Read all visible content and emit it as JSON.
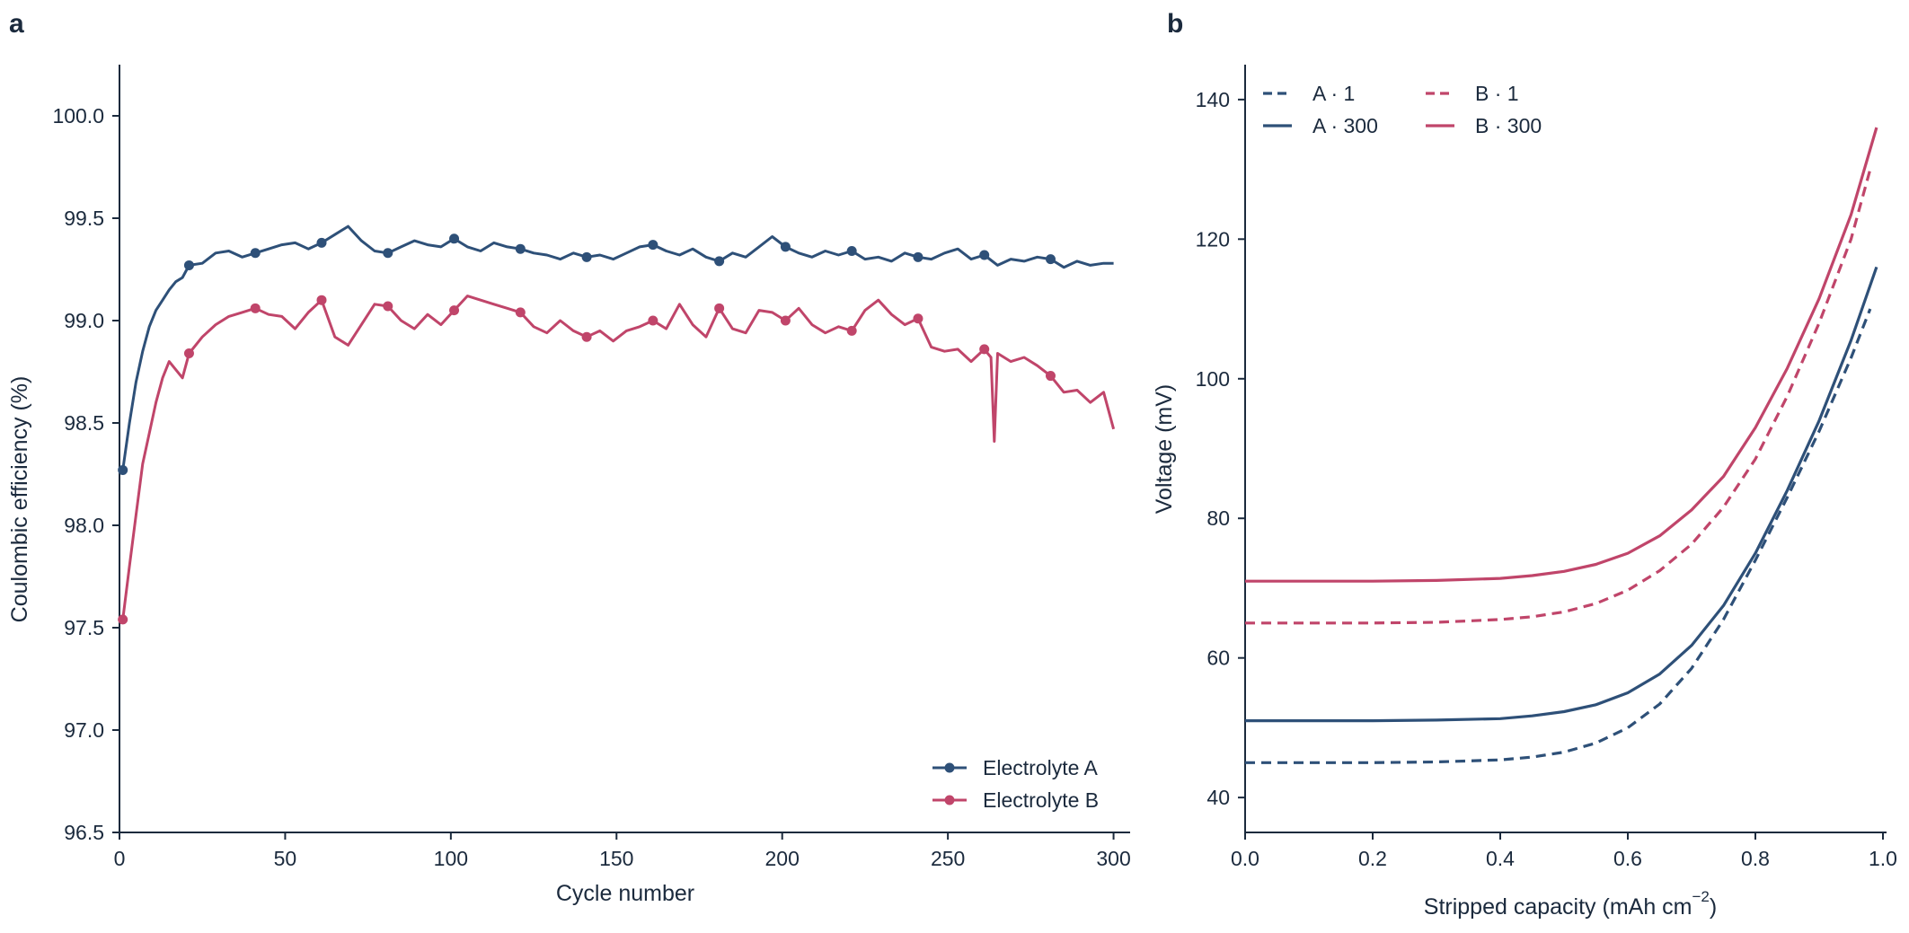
{
  "chart_data": [
    {
      "panel_label": "a",
      "type": "line",
      "xlabel": "Cycle number",
      "ylabel": "Coulombic efficiency (%)",
      "xlim": [
        0,
        305
      ],
      "ylim": [
        96.5,
        100.25
      ],
      "x_ticks": [
        0,
        50,
        100,
        150,
        200,
        250,
        300
      ],
      "x_tick_labels": [
        "0",
        "50",
        "100",
        "150",
        "200",
        "250",
        "300"
      ],
      "y_ticks": [
        96.5,
        97.0,
        97.5,
        98.0,
        98.5,
        99.0,
        99.5,
        100.0
      ],
      "y_tick_labels": [
        "96.5",
        "97.0",
        "97.5",
        "98.0",
        "98.5",
        "99.0",
        "99.5",
        "100.0"
      ],
      "legend_position": "bottom-right",
      "marker_cycles": [
        1,
        21,
        41,
        61,
        81,
        101,
        121,
        141,
        161,
        181,
        201,
        221,
        241,
        261,
        281
      ],
      "series": [
        {
          "name": "Electrolyte A",
          "color": "#2e5078",
          "x": [
            1,
            3,
            5,
            7,
            9,
            11,
            13,
            15,
            17,
            19,
            21,
            25,
            29,
            33,
            37,
            41,
            45,
            49,
            53,
            57,
            61,
            65,
            69,
            73,
            77,
            81,
            85,
            89,
            93,
            97,
            101,
            105,
            109,
            113,
            117,
            121,
            125,
            129,
            133,
            137,
            141,
            145,
            149,
            153,
            157,
            161,
            165,
            169,
            173,
            177,
            181,
            185,
            189,
            193,
            197,
            201,
            205,
            209,
            213,
            217,
            221,
            225,
            229,
            233,
            237,
            241,
            245,
            249,
            253,
            257,
            261,
            265,
            269,
            273,
            277,
            281,
            285,
            289,
            293,
            297,
            300
          ],
          "values": [
            98.27,
            98.5,
            98.7,
            98.85,
            98.97,
            99.05,
            99.1,
            99.15,
            99.19,
            99.21,
            99.27,
            99.28,
            99.33,
            99.34,
            99.31,
            99.33,
            99.35,
            99.37,
            99.38,
            99.35,
            99.38,
            99.42,
            99.46,
            99.39,
            99.34,
            99.33,
            99.36,
            99.39,
            99.37,
            99.36,
            99.4,
            99.36,
            99.34,
            99.38,
            99.36,
            99.35,
            99.33,
            99.32,
            99.3,
            99.33,
            99.31,
            99.32,
            99.3,
            99.33,
            99.36,
            99.37,
            99.34,
            99.32,
            99.35,
            99.31,
            99.29,
            99.33,
            99.31,
            99.36,
            99.41,
            99.36,
            99.33,
            99.31,
            99.34,
            99.32,
            99.34,
            99.3,
            99.31,
            99.29,
            99.33,
            99.31,
            99.3,
            99.33,
            99.35,
            99.3,
            99.32,
            99.27,
            99.3,
            99.29,
            99.31,
            99.3,
            99.26,
            99.29,
            99.27,
            99.28,
            99.28
          ]
        },
        {
          "name": "Electrolyte B",
          "color": "#c0456a",
          "x": [
            1,
            3,
            5,
            7,
            9,
            11,
            13,
            15,
            17,
            19,
            21,
            25,
            29,
            33,
            37,
            41,
            45,
            49,
            53,
            57,
            61,
            65,
            69,
            73,
            77,
            81,
            85,
            89,
            93,
            97,
            101,
            105,
            109,
            113,
            117,
            121,
            125,
            129,
            133,
            137,
            141,
            145,
            149,
            153,
            157,
            161,
            165,
            169,
            173,
            177,
            181,
            185,
            189,
            193,
            197,
            201,
            205,
            209,
            213,
            217,
            221,
            225,
            229,
            233,
            237,
            241,
            245,
            249,
            253,
            257,
            261,
            263,
            264,
            265,
            269,
            273,
            277,
            281,
            285,
            289,
            293,
            297,
            300
          ],
          "values": [
            97.54,
            97.8,
            98.05,
            98.3,
            98.45,
            98.6,
            98.72,
            98.8,
            98.76,
            98.72,
            98.84,
            98.92,
            98.98,
            99.02,
            99.04,
            99.06,
            99.03,
            99.02,
            98.96,
            99.04,
            99.1,
            98.92,
            98.88,
            98.98,
            99.08,
            99.07,
            99.0,
            98.96,
            99.03,
            98.98,
            99.05,
            99.12,
            99.1,
            99.08,
            99.06,
            99.04,
            98.97,
            98.94,
            99.0,
            98.95,
            98.92,
            98.95,
            98.9,
            98.95,
            98.97,
            99.0,
            98.96,
            99.08,
            98.98,
            98.92,
            99.06,
            98.96,
            98.94,
            99.05,
            99.04,
            99.0,
            99.06,
            98.98,
            98.94,
            98.97,
            98.95,
            99.05,
            99.1,
            99.03,
            98.98,
            99.01,
            98.87,
            98.85,
            98.86,
            98.8,
            98.86,
            98.82,
            98.41,
            98.84,
            98.8,
            98.82,
            98.78,
            98.73,
            98.65,
            98.66,
            98.6,
            98.65,
            98.47
          ]
        }
      ]
    },
    {
      "panel_label": "b",
      "type": "line",
      "xlabel": "Stripped capacity (mAh cm",
      "xlabel_superscript": "−2",
      "xlabel_suffix": ")",
      "ylabel": "Voltage (mV)",
      "xlim": [
        0,
        1.0
      ],
      "ylim": [
        35,
        145
      ],
      "x_ticks": [
        0.0,
        0.2,
        0.4,
        0.6,
        0.8,
        1.0
      ],
      "x_tick_labels": [
        "0.0",
        "0.2",
        "0.4",
        "0.6",
        "0.8",
        "1.0"
      ],
      "y_ticks": [
        40,
        60,
        80,
        100,
        120,
        140
      ],
      "y_tick_labels": [
        "40",
        "60",
        "80",
        "100",
        "120",
        "140"
      ],
      "legend_position": "top-left",
      "series": [
        {
          "name": "A · 1",
          "color": "#2e5078",
          "dash": true,
          "x": [
            0.0,
            0.1,
            0.2,
            0.3,
            0.4,
            0.45,
            0.5,
            0.55,
            0.6,
            0.65,
            0.7,
            0.75,
            0.8,
            0.85,
            0.9,
            0.95,
            0.98
          ],
          "values": [
            45.0,
            45.0,
            45.0,
            45.1,
            45.4,
            45.8,
            46.5,
            47.8,
            50.0,
            53.4,
            58.5,
            65.5,
            74.0,
            83.0,
            92.5,
            103.0,
            110.0
          ]
        },
        {
          "name": "A · 300",
          "color": "#2e5078",
          "dash": false,
          "x": [
            0.0,
            0.1,
            0.2,
            0.3,
            0.4,
            0.45,
            0.5,
            0.55,
            0.6,
            0.65,
            0.7,
            0.75,
            0.8,
            0.85,
            0.9,
            0.95,
            0.99
          ],
          "values": [
            51.0,
            51.0,
            51.0,
            51.1,
            51.3,
            51.7,
            52.3,
            53.3,
            55.0,
            57.7,
            61.8,
            67.5,
            75.0,
            84.0,
            94.0,
            105.5,
            116.0
          ]
        },
        {
          "name": "B · 1",
          "color": "#c0456a",
          "dash": true,
          "x": [
            0.0,
            0.1,
            0.2,
            0.3,
            0.4,
            0.45,
            0.5,
            0.55,
            0.6,
            0.65,
            0.7,
            0.75,
            0.8,
            0.85,
            0.9,
            0.95,
            0.98
          ],
          "values": [
            65.0,
            65.0,
            65.0,
            65.1,
            65.5,
            65.9,
            66.6,
            67.8,
            69.7,
            72.5,
            76.3,
            81.6,
            88.5,
            97.5,
            108.0,
            120.0,
            130.0
          ]
        },
        {
          "name": "B · 300",
          "color": "#c0456a",
          "dash": false,
          "x": [
            0.0,
            0.1,
            0.2,
            0.3,
            0.4,
            0.45,
            0.5,
            0.55,
            0.6,
            0.65,
            0.7,
            0.75,
            0.8,
            0.85,
            0.9,
            0.95,
            0.99
          ],
          "values": [
            71.0,
            71.0,
            71.0,
            71.1,
            71.4,
            71.8,
            72.4,
            73.4,
            75.0,
            77.5,
            81.2,
            86.0,
            93.0,
            101.5,
            111.5,
            123.5,
            136.0
          ]
        }
      ]
    }
  ]
}
